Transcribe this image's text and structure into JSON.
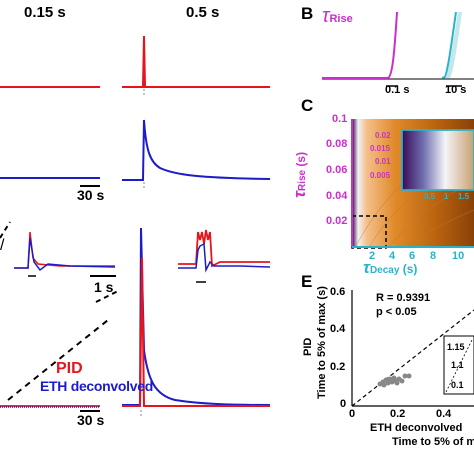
{
  "panel_labels": {
    "A_top_time_1": "0.15 s",
    "A_top_time_2": "0.5 s",
    "B": "B",
    "C": "C",
    "E": "E"
  },
  "scale_bars": {
    "s30_top": "30 s",
    "s1": "1 s",
    "s30_bottom": "30 s"
  },
  "legend": {
    "pid": "PID",
    "eth": "ETH deconvolved"
  },
  "panel_b": {
    "tau": "τ",
    "sub": "Rise",
    "tick1": "0.1 s",
    "tick2": "10 s"
  },
  "panel_c": {
    "y_ticks": [
      "0.1",
      "0.08",
      "0.06",
      "0.04",
      "0.02"
    ],
    "x_ticks": [
      "2",
      "4",
      "6",
      "8",
      "10"
    ],
    "y_label_tau": "τ",
    "y_label_sub": "Rise",
    "y_label_unit": "(s)",
    "x_label_tau": "τ",
    "x_label_sub": "Decay",
    "x_label_unit": "(s)",
    "inset_y_ticks": [
      "0.02",
      "0.015",
      "0.01",
      "0.005"
    ],
    "inset_x_ticks": [
      "0.5",
      "1",
      "1.5"
    ]
  },
  "panel_e": {
    "y_label_1": "PID",
    "y_label_2": "Time to 5% of max (s)",
    "r_text": "R = 0.9391",
    "p_text": "p < 0.05",
    "y_ticks": [
      "0.6",
      "0.4",
      "0.2",
      "0"
    ],
    "x_ticks": [
      "0",
      "0.2",
      "0.4"
    ],
    "x_label_1": "ETH deconvolved",
    "x_label_2": "Time to 5% of m",
    "inset_ticks": [
      "1.15",
      "1.1",
      "0.1"
    ]
  },
  "colors": {
    "pid": "#e8141c",
    "eth": "#1c1cc8",
    "rise": "#cc2ecc",
    "decay": "#2ab3c8"
  }
}
